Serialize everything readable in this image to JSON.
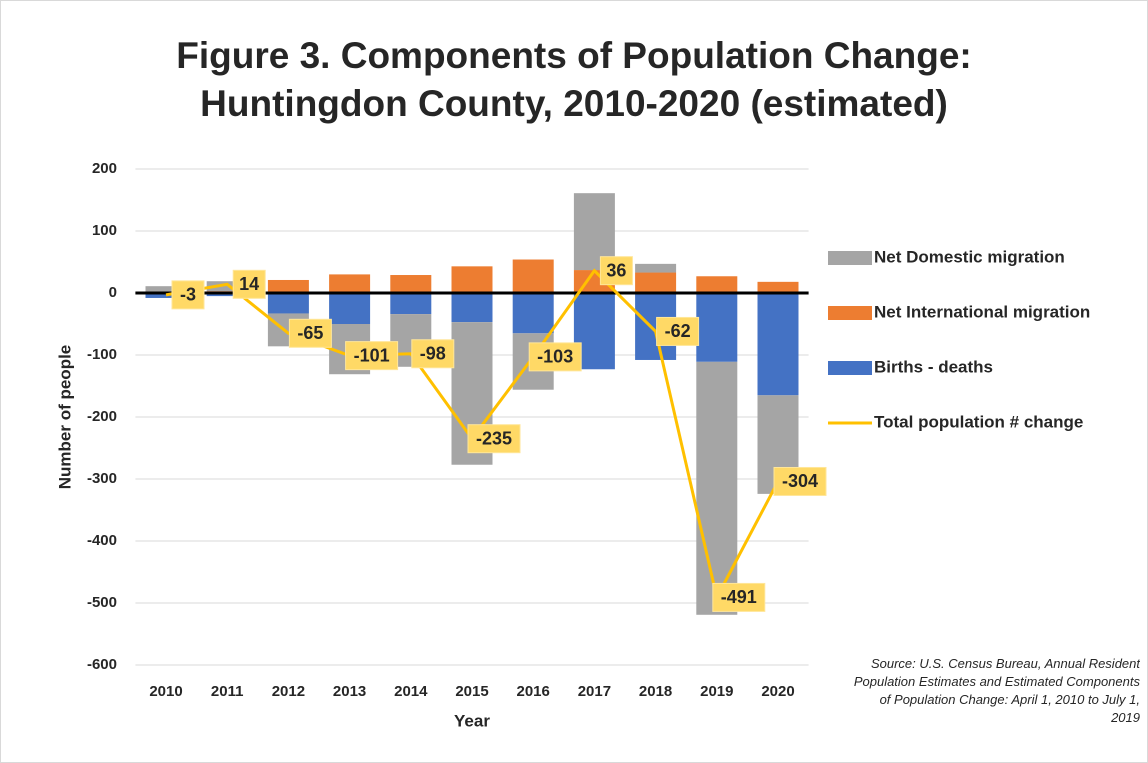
{
  "chart_data": {
    "type": "stacked_bar_line",
    "title": "Figure 3. Components of Population Change:",
    "subtitle": "Huntingdon County, 2010-2020 (estimated)",
    "x_label": "Year",
    "y_label": "Number of people",
    "source": "Source: U.S. Census Bureau, Annual Resident Population Estimates and Estimated Components of Population Change: April 1, 2010 to July 1, 2019",
    "categories": [
      "2010",
      "2011",
      "2012",
      "2013",
      "2014",
      "2015",
      "2016",
      "2017",
      "2018",
      "2019",
      "2020"
    ],
    "series": [
      {
        "name": "Net Domestic migration",
        "color": "#a5a5a5",
        "kind": "bar",
        "values": [
          9,
          16,
          -53,
          -81,
          -85,
          -230,
          -91,
          124,
          14,
          -408,
          -159
        ]
      },
      {
        "name": "Net International migration",
        "color": "#ed7d31",
        "kind": "bar",
        "values": [
          2,
          3,
          21,
          30,
          29,
          43,
          54,
          37,
          33,
          27,
          18
        ]
      },
      {
        "name": "Births - deaths",
        "color": "#4472c4",
        "kind": "bar",
        "values": [
          -8,
          -5,
          -33,
          -50,
          -34,
          -47,
          -65,
          -123,
          -108,
          -111,
          -165
        ]
      },
      {
        "name": "Total population # change",
        "color": "#ffc000",
        "kind": "line",
        "values": [
          -3,
          14,
          -65,
          -101,
          -98,
          -235,
          -103,
          36,
          -62,
          -491,
          -304
        ]
      }
    ],
    "ylim": [
      -600,
      200
    ],
    "yticks": [
      -600,
      -500,
      -400,
      -300,
      -200,
      -100,
      0,
      100,
      200
    ]
  }
}
